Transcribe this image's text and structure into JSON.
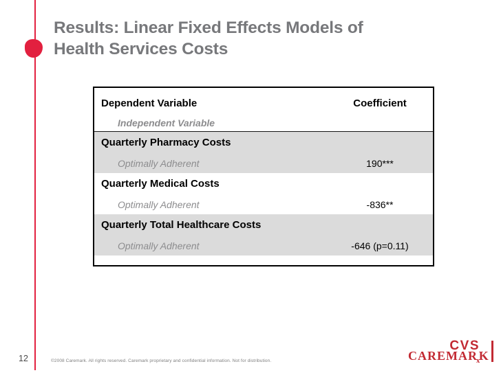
{
  "slide": {
    "title": "Results: Linear Fixed Effects Models of\nHealth Services Costs",
    "page_number": "12",
    "footer_note": "©2008 Caremark. All rights reserved. Caremark proprietary and confidential information. Not for distribution.",
    "logo": {
      "cvs": "CVS",
      "caremark_pre": "CAREMAR",
      "rx": "x",
      "caremark_post": "K"
    }
  },
  "table": {
    "header": {
      "dependent": "Dependent Variable",
      "coefficient": "Coefficient",
      "independent": "Independent Variable"
    },
    "rows": [
      {
        "dependent": "Quarterly Pharmacy Costs",
        "independent": "Optimally Adherent",
        "coefficient": "190***",
        "shaded": true
      },
      {
        "dependent": "Quarterly Medical Costs",
        "independent": "Optimally Adherent",
        "coefficient": "-836**",
        "shaded": false
      },
      {
        "dependent": "Quarterly Total Healthcare Costs",
        "independent": "Optimally Adherent",
        "coefficient": "-646 (p=0.11)",
        "shaded": true
      }
    ]
  },
  "colors": {
    "accent_red": "#E2203F",
    "logo_red": "#C22A33",
    "title_gray": "#77787B",
    "row_shade": "#DBDBDB",
    "muted_text": "#8C8C8E"
  }
}
